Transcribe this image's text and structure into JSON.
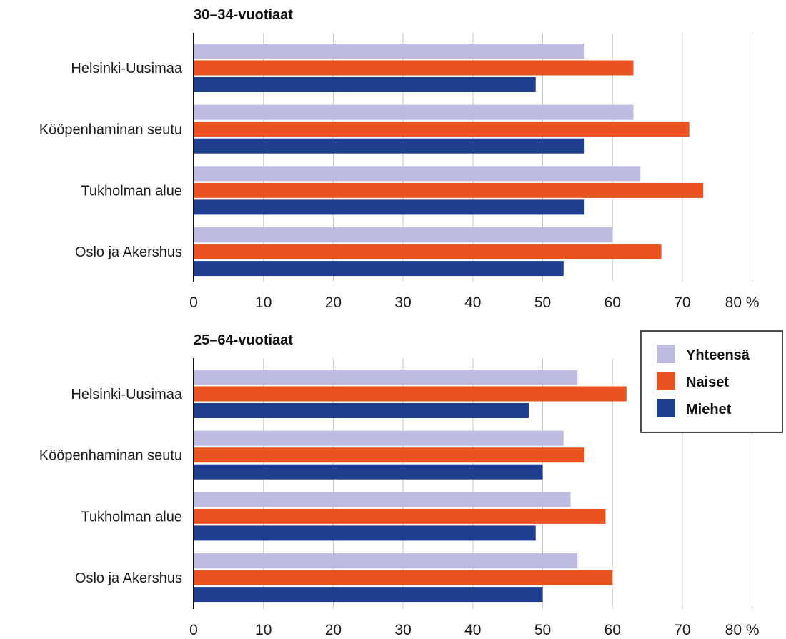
{
  "chart_data": [
    {
      "type": "bar",
      "orientation": "horizontal",
      "title": "30–34-vuotiaat",
      "categories": [
        "Helsinki-Uusimaa",
        "Kööpenhaminan seutu",
        "Tukholman alue",
        "Oslo ja Akershus"
      ],
      "series": [
        {
          "name": "Yhteensä",
          "values": [
            56,
            63,
            64,
            60
          ]
        },
        {
          "name": "Naiset",
          "values": [
            63,
            71,
            73,
            67
          ]
        },
        {
          "name": "Miehet",
          "values": [
            49,
            56,
            56,
            53
          ]
        }
      ],
      "xlim": [
        0,
        80
      ],
      "ticks": [
        "0",
        "10",
        "20",
        "30",
        "40",
        "50",
        "60",
        "70",
        "80 %"
      ],
      "grid": true
    },
    {
      "type": "bar",
      "orientation": "horizontal",
      "title": "25–64-vuotiaat",
      "categories": [
        "Helsinki-Uusimaa",
        "Kööpenhaminan seutu",
        "Tukholman alue",
        "Oslo ja Akershus"
      ],
      "series": [
        {
          "name": "Yhteensä",
          "values": [
            55,
            53,
            54,
            55
          ]
        },
        {
          "name": "Naiset",
          "values": [
            62,
            56,
            59,
            60
          ]
        },
        {
          "name": "Miehet",
          "values": [
            48,
            50,
            49,
            50
          ]
        }
      ],
      "xlim": [
        0,
        80
      ],
      "ticks": [
        "0",
        "10",
        "20",
        "30",
        "40",
        "50",
        "60",
        "70",
        "80 %"
      ],
      "grid": true
    }
  ],
  "legend": {
    "placement": "right",
    "items": [
      {
        "label": "Yhteensä",
        "color": "#bdbbe0"
      },
      {
        "label": "Naiset",
        "color": "#e9531f"
      },
      {
        "label": "Miehet",
        "color": "#1e3f8f"
      }
    ]
  },
  "colors": {
    "Yhteensä": "#bdbbe0",
    "Naiset": "#e9531f",
    "Miehet": "#1e3f8f",
    "grid": "#c8c8c8",
    "axis": "#111111"
  }
}
